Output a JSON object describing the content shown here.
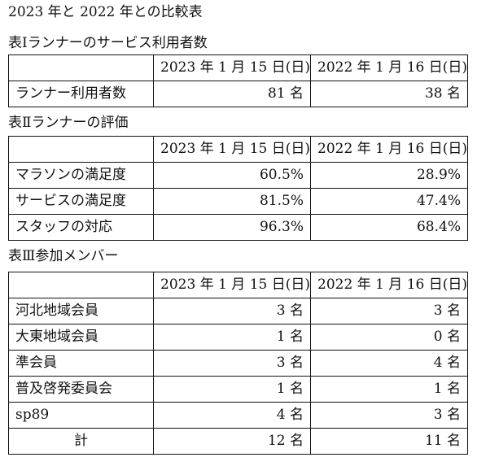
{
  "title": "2023 年と 2022 年との比較表",
  "table1": {
    "caption": "表Ⅰランナーのサービス利用者数",
    "headers": [
      "",
      "2023 年 1 月 15 日(日)",
      "2022 年 1 月 16 日(日)"
    ],
    "rows": [
      {
        "label": "ランナー利用者数",
        "v2023": "81 名",
        "v2022": "38 名"
      }
    ]
  },
  "table2": {
    "caption": "表Ⅱランナーの評価",
    "headers": [
      "",
      "2023 年 1 月 15 日(日)",
      "2022 年 1 月 16 日(日)"
    ],
    "rows": [
      {
        "label": "マラソンの満足度",
        "v2023": "60.5%",
        "v2022": "28.9%"
      },
      {
        "label": "サービスの満足度",
        "v2023": "81.5%",
        "v2022": "47.4%"
      },
      {
        "label": "スタッフの対応",
        "v2023": "96.3%",
        "v2022": "68.4%"
      }
    ]
  },
  "table3": {
    "caption": "表Ⅲ参加メンバー",
    "headers": [
      "",
      "2023 年 1 月 15 日(日)",
      "2022 年 1 月 16 日(日)"
    ],
    "rows": [
      {
        "label": "河北地域会員",
        "v2023": "3 名",
        "v2022": "3 名"
      },
      {
        "label": "大東地域会員",
        "v2023": "1 名",
        "v2022": "0 名"
      },
      {
        "label": "準会員",
        "v2023": "3 名",
        "v2022": "4 名"
      },
      {
        "label": "普及啓発委員会",
        "v2023": "1 名",
        "v2022": "1 名"
      },
      {
        "label": "sp89",
        "v2023": "4 名",
        "v2022": "3 名"
      }
    ],
    "total": {
      "label": "計",
      "v2023": "12 名",
      "v2022": "11 名"
    }
  }
}
